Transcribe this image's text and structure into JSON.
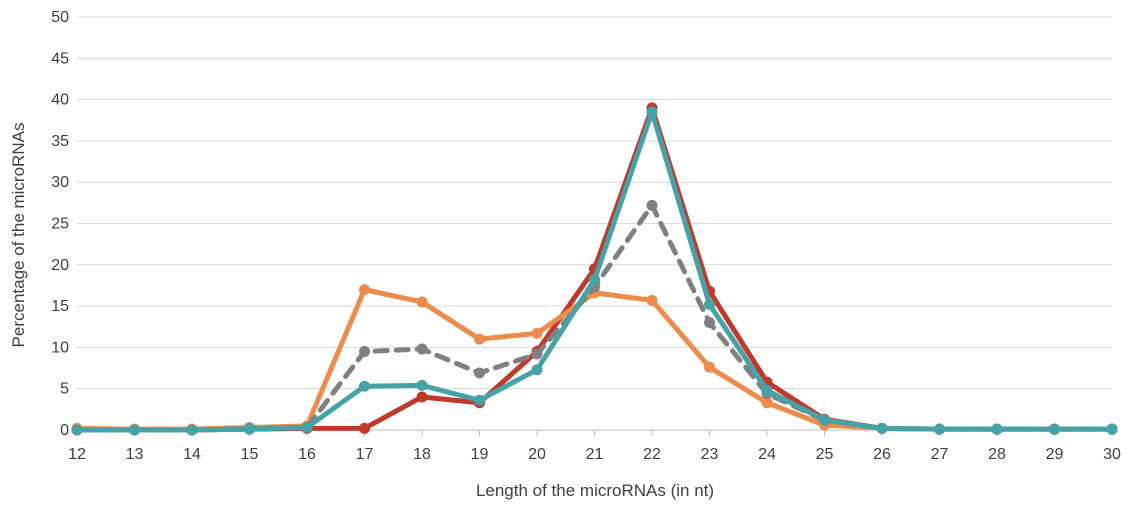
{
  "chart_data": {
    "type": "line",
    "title": "",
    "xlabel": "Length of the microRNAs (in nt)",
    "ylabel": "Percentage of the microRNAs",
    "x": [
      12,
      13,
      14,
      15,
      16,
      17,
      18,
      19,
      20,
      21,
      22,
      23,
      24,
      25,
      26,
      27,
      28,
      29,
      30
    ],
    "xlim": [
      12,
      30
    ],
    "ylim": [
      0,
      50
    ],
    "yticks": [
      0,
      5,
      10,
      15,
      20,
      25,
      30,
      35,
      40,
      45,
      50
    ],
    "grid": "horizontal",
    "legend": "none",
    "series": [
      {
        "color": "#c0392b",
        "dash": "solid",
        "values": [
          0,
          0,
          0,
          0.1,
          0.2,
          0.2,
          4.0,
          3.3,
          9.5,
          19.5,
          39.0,
          16.8,
          5.8,
          1.3,
          0.2,
          0.1,
          0.1,
          0.1,
          0.1
        ]
      },
      {
        "color": "#ee8a4a",
        "dash": "solid",
        "values": [
          0.2,
          0.1,
          0.1,
          0.3,
          0.5,
          17.0,
          15.5,
          11.0,
          11.7,
          16.6,
          15.7,
          7.6,
          3.3,
          0.6,
          0.2,
          0.1,
          0.1,
          0.1,
          0.1
        ]
      },
      {
        "color": "#808080",
        "dash": "dashed",
        "values": [
          0,
          0,
          0,
          0.2,
          0.3,
          9.5,
          9.8,
          6.9,
          9.2,
          17.3,
          27.2,
          13.0,
          4.4,
          1.2,
          0.2,
          0.1,
          0.1,
          0.1,
          0.1
        ]
      },
      {
        "color": "#45a3a8",
        "dash": "solid",
        "values": [
          0,
          0,
          0,
          0.1,
          0.3,
          5.3,
          5.4,
          3.6,
          7.3,
          18.2,
          38.5,
          15.2,
          4.8,
          1.2,
          0.2,
          0.1,
          0.1,
          0.1,
          0.1
        ]
      }
    ]
  }
}
